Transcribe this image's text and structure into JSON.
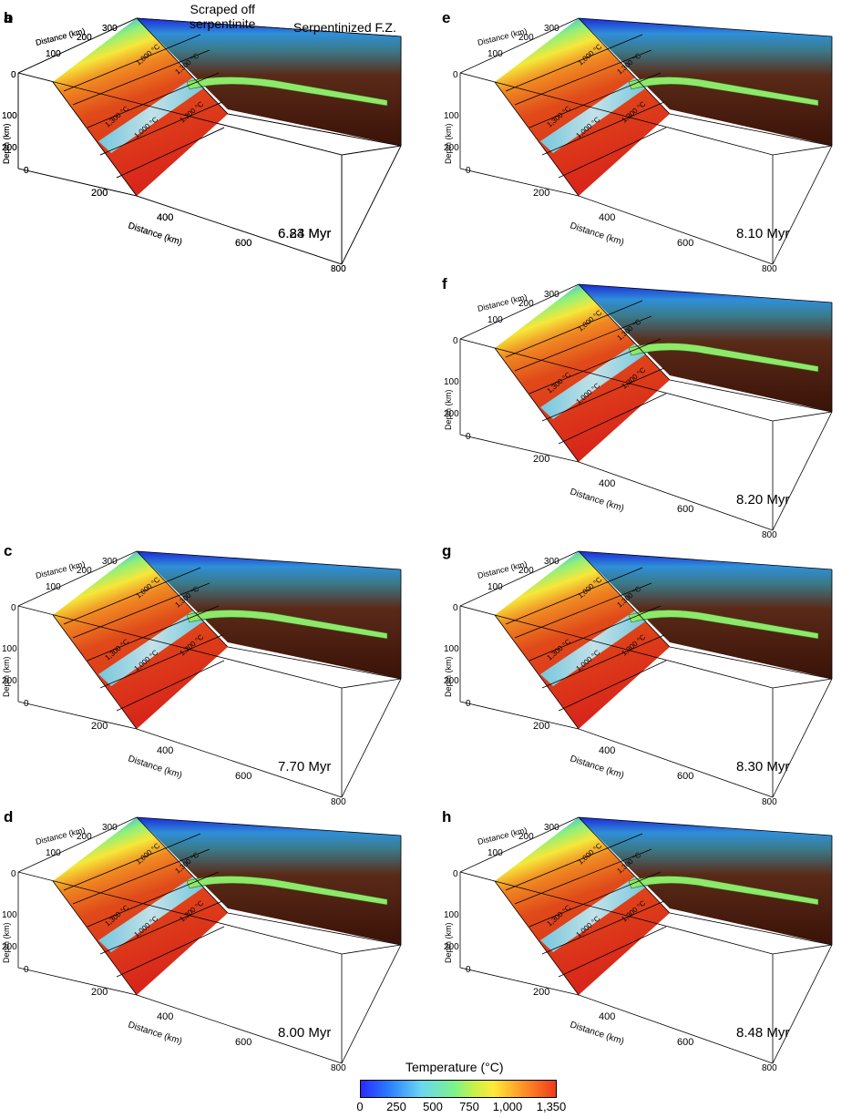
{
  "panels": [
    {
      "letter": "a",
      "time": "6.23 Myr"
    },
    {
      "letter": "b",
      "time": "6.84 Myr"
    },
    {
      "letter": "c",
      "time": "7.70 Myr"
    },
    {
      "letter": "d",
      "time": "8.00 Myr"
    },
    {
      "letter": "e",
      "time": "8.10 Myr"
    },
    {
      "letter": "f",
      "time": "8.20 Myr"
    },
    {
      "letter": "g",
      "time": "8.30 Myr"
    },
    {
      "letter": "h",
      "time": "8.48 Myr"
    }
  ],
  "axes": {
    "distance_label": "Distance (km)",
    "depth_label": "Depth (km)",
    "top_ticks": [
      "100",
      "200",
      "300"
    ],
    "depth_ticks": [
      "0",
      "100",
      "200",
      "0"
    ],
    "bottom_ticks": [
      "200",
      "400",
      "600",
      "800"
    ]
  },
  "isotherms": {
    "t1000": "1,000 °C",
    "t1300": "1,300 °C"
  },
  "annotations": {
    "scraped_line1": "Scraped off",
    "scraped_line2": "serpentinite",
    "serpentinized": "Serpentinized F.Z."
  },
  "legend": {
    "title": "Temperature (°C)",
    "ticks": [
      "0",
      "250",
      "500",
      "750",
      "1,000",
      "1,350"
    ],
    "colors": [
      "#2a2aff",
      "#6ad6f2",
      "#7cf38a",
      "#ffea3a",
      "#ff9a28",
      "#ee3a1c"
    ]
  }
}
